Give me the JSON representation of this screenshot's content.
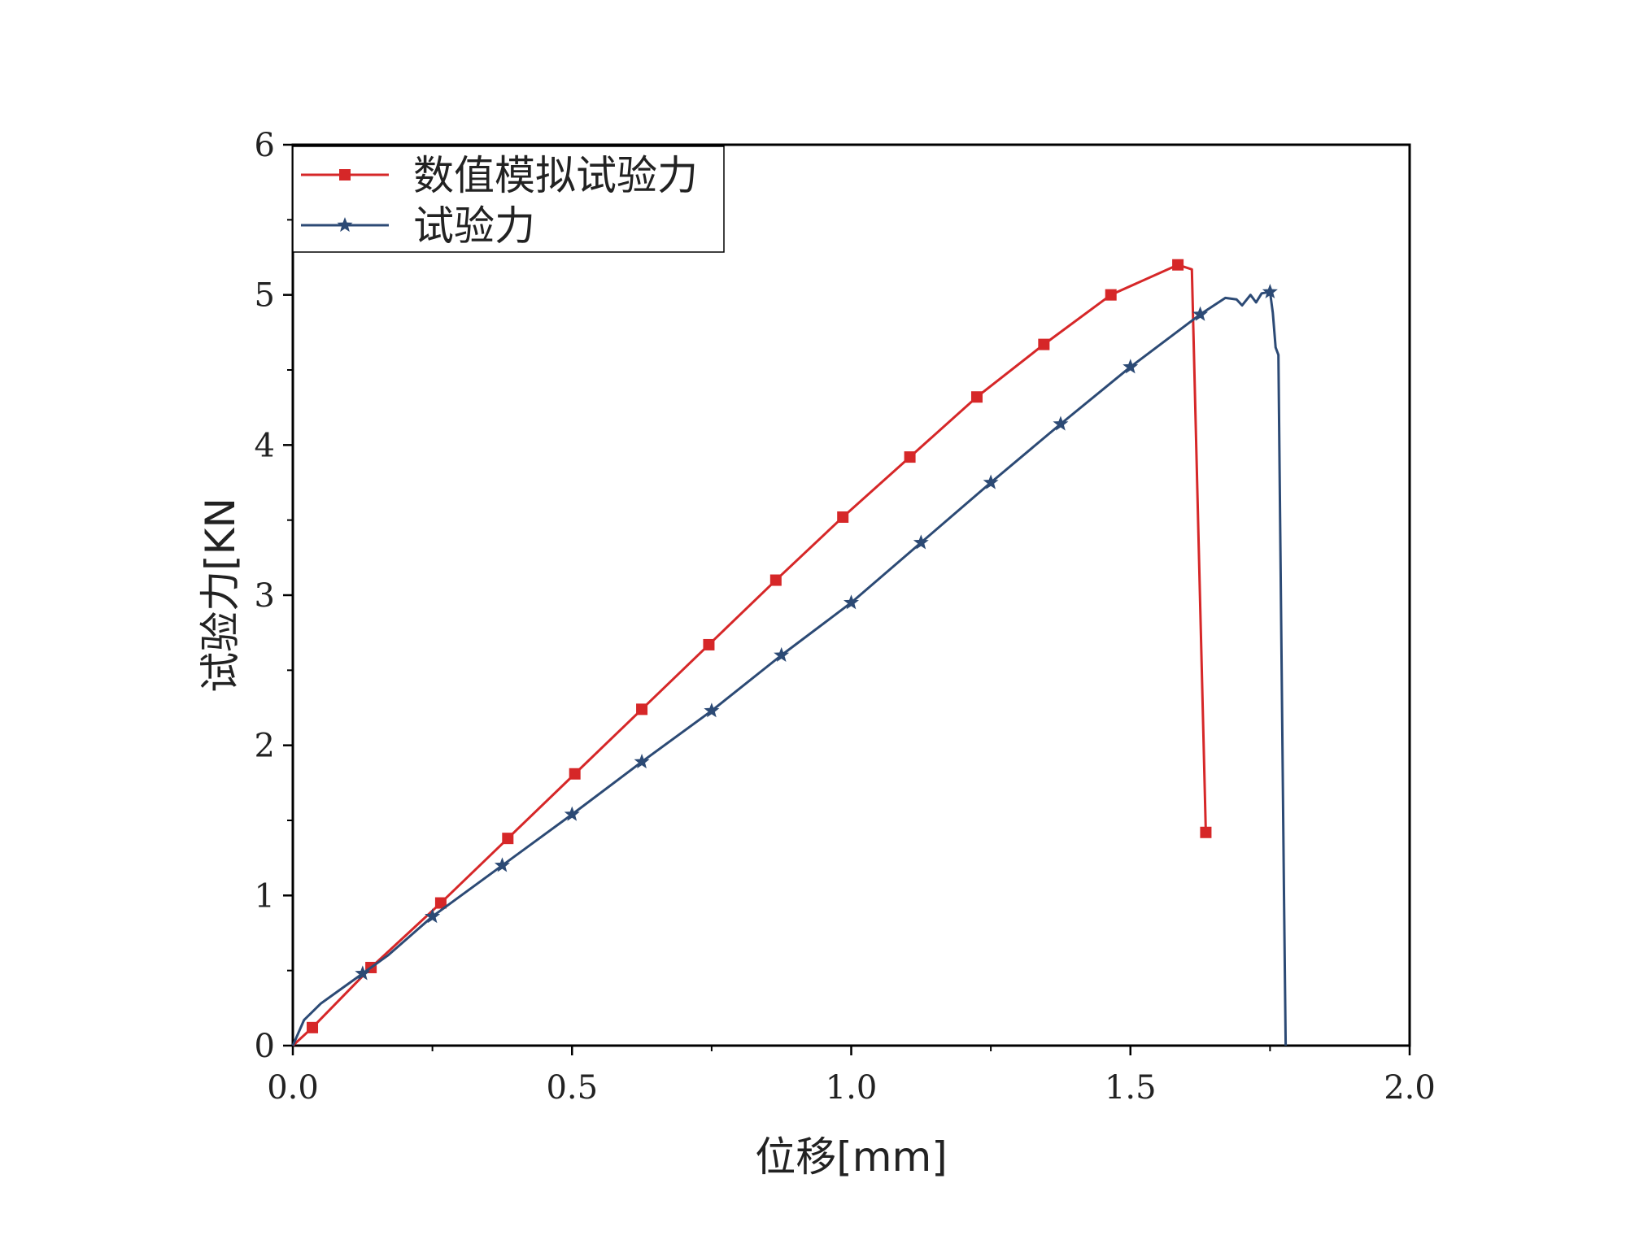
{
  "chart_data": {
    "type": "line",
    "title": "",
    "xlabel": "位移[mm]",
    "ylabel": "试验力[KN",
    "xlim": [
      0,
      2.0
    ],
    "ylim": [
      0,
      6
    ],
    "x_ticks": [
      "0.0",
      "0.5",
      "1.0",
      "1.5",
      "2.0"
    ],
    "y_ticks": [
      "0",
      "1",
      "2",
      "3",
      "4",
      "5",
      "6"
    ],
    "grid": false,
    "legend_position": "top-left",
    "series": [
      {
        "name": "数值模拟试验力",
        "color": "#d62728",
        "marker": "square",
        "x": [
          0.0,
          0.035,
          0.14,
          0.265,
          0.385,
          0.505,
          0.625,
          0.745,
          0.865,
          0.985,
          1.105,
          1.225,
          1.345,
          1.465,
          1.585,
          1.61,
          1.635
        ],
        "y": [
          0.0,
          0.12,
          0.52,
          0.95,
          1.38,
          1.81,
          2.24,
          2.67,
          3.1,
          3.52,
          3.92,
          4.32,
          4.67,
          5.0,
          5.2,
          5.17,
          1.42
        ],
        "marker_indices": [
          1,
          2,
          3,
          4,
          5,
          6,
          7,
          8,
          9,
          10,
          11,
          12,
          13,
          14,
          16
        ]
      },
      {
        "name": "试验力",
        "color": "#2c4a75",
        "marker": "star",
        "x": [
          0.0,
          0.02,
          0.05,
          0.08,
          0.125,
          0.17,
          0.25,
          0.375,
          0.5,
          0.625,
          0.75,
          0.875,
          1.0,
          1.125,
          1.25,
          1.375,
          1.5,
          1.625,
          1.67,
          1.69,
          1.7,
          1.715,
          1.725,
          1.735,
          1.75,
          1.755,
          1.76,
          1.765,
          1.775,
          1.778
        ],
        "y": [
          0.0,
          0.17,
          0.28,
          0.36,
          0.48,
          0.6,
          0.86,
          1.2,
          1.54,
          1.89,
          2.23,
          2.6,
          2.95,
          3.35,
          3.75,
          4.14,
          4.52,
          4.87,
          4.98,
          4.97,
          4.93,
          5.0,
          4.95,
          5.01,
          5.02,
          4.88,
          4.65,
          4.6,
          1.0,
          0.0
        ],
        "marker_indices": [
          4,
          6,
          7,
          8,
          9,
          10,
          11,
          12,
          13,
          14,
          15,
          16,
          17,
          24
        ]
      }
    ]
  }
}
